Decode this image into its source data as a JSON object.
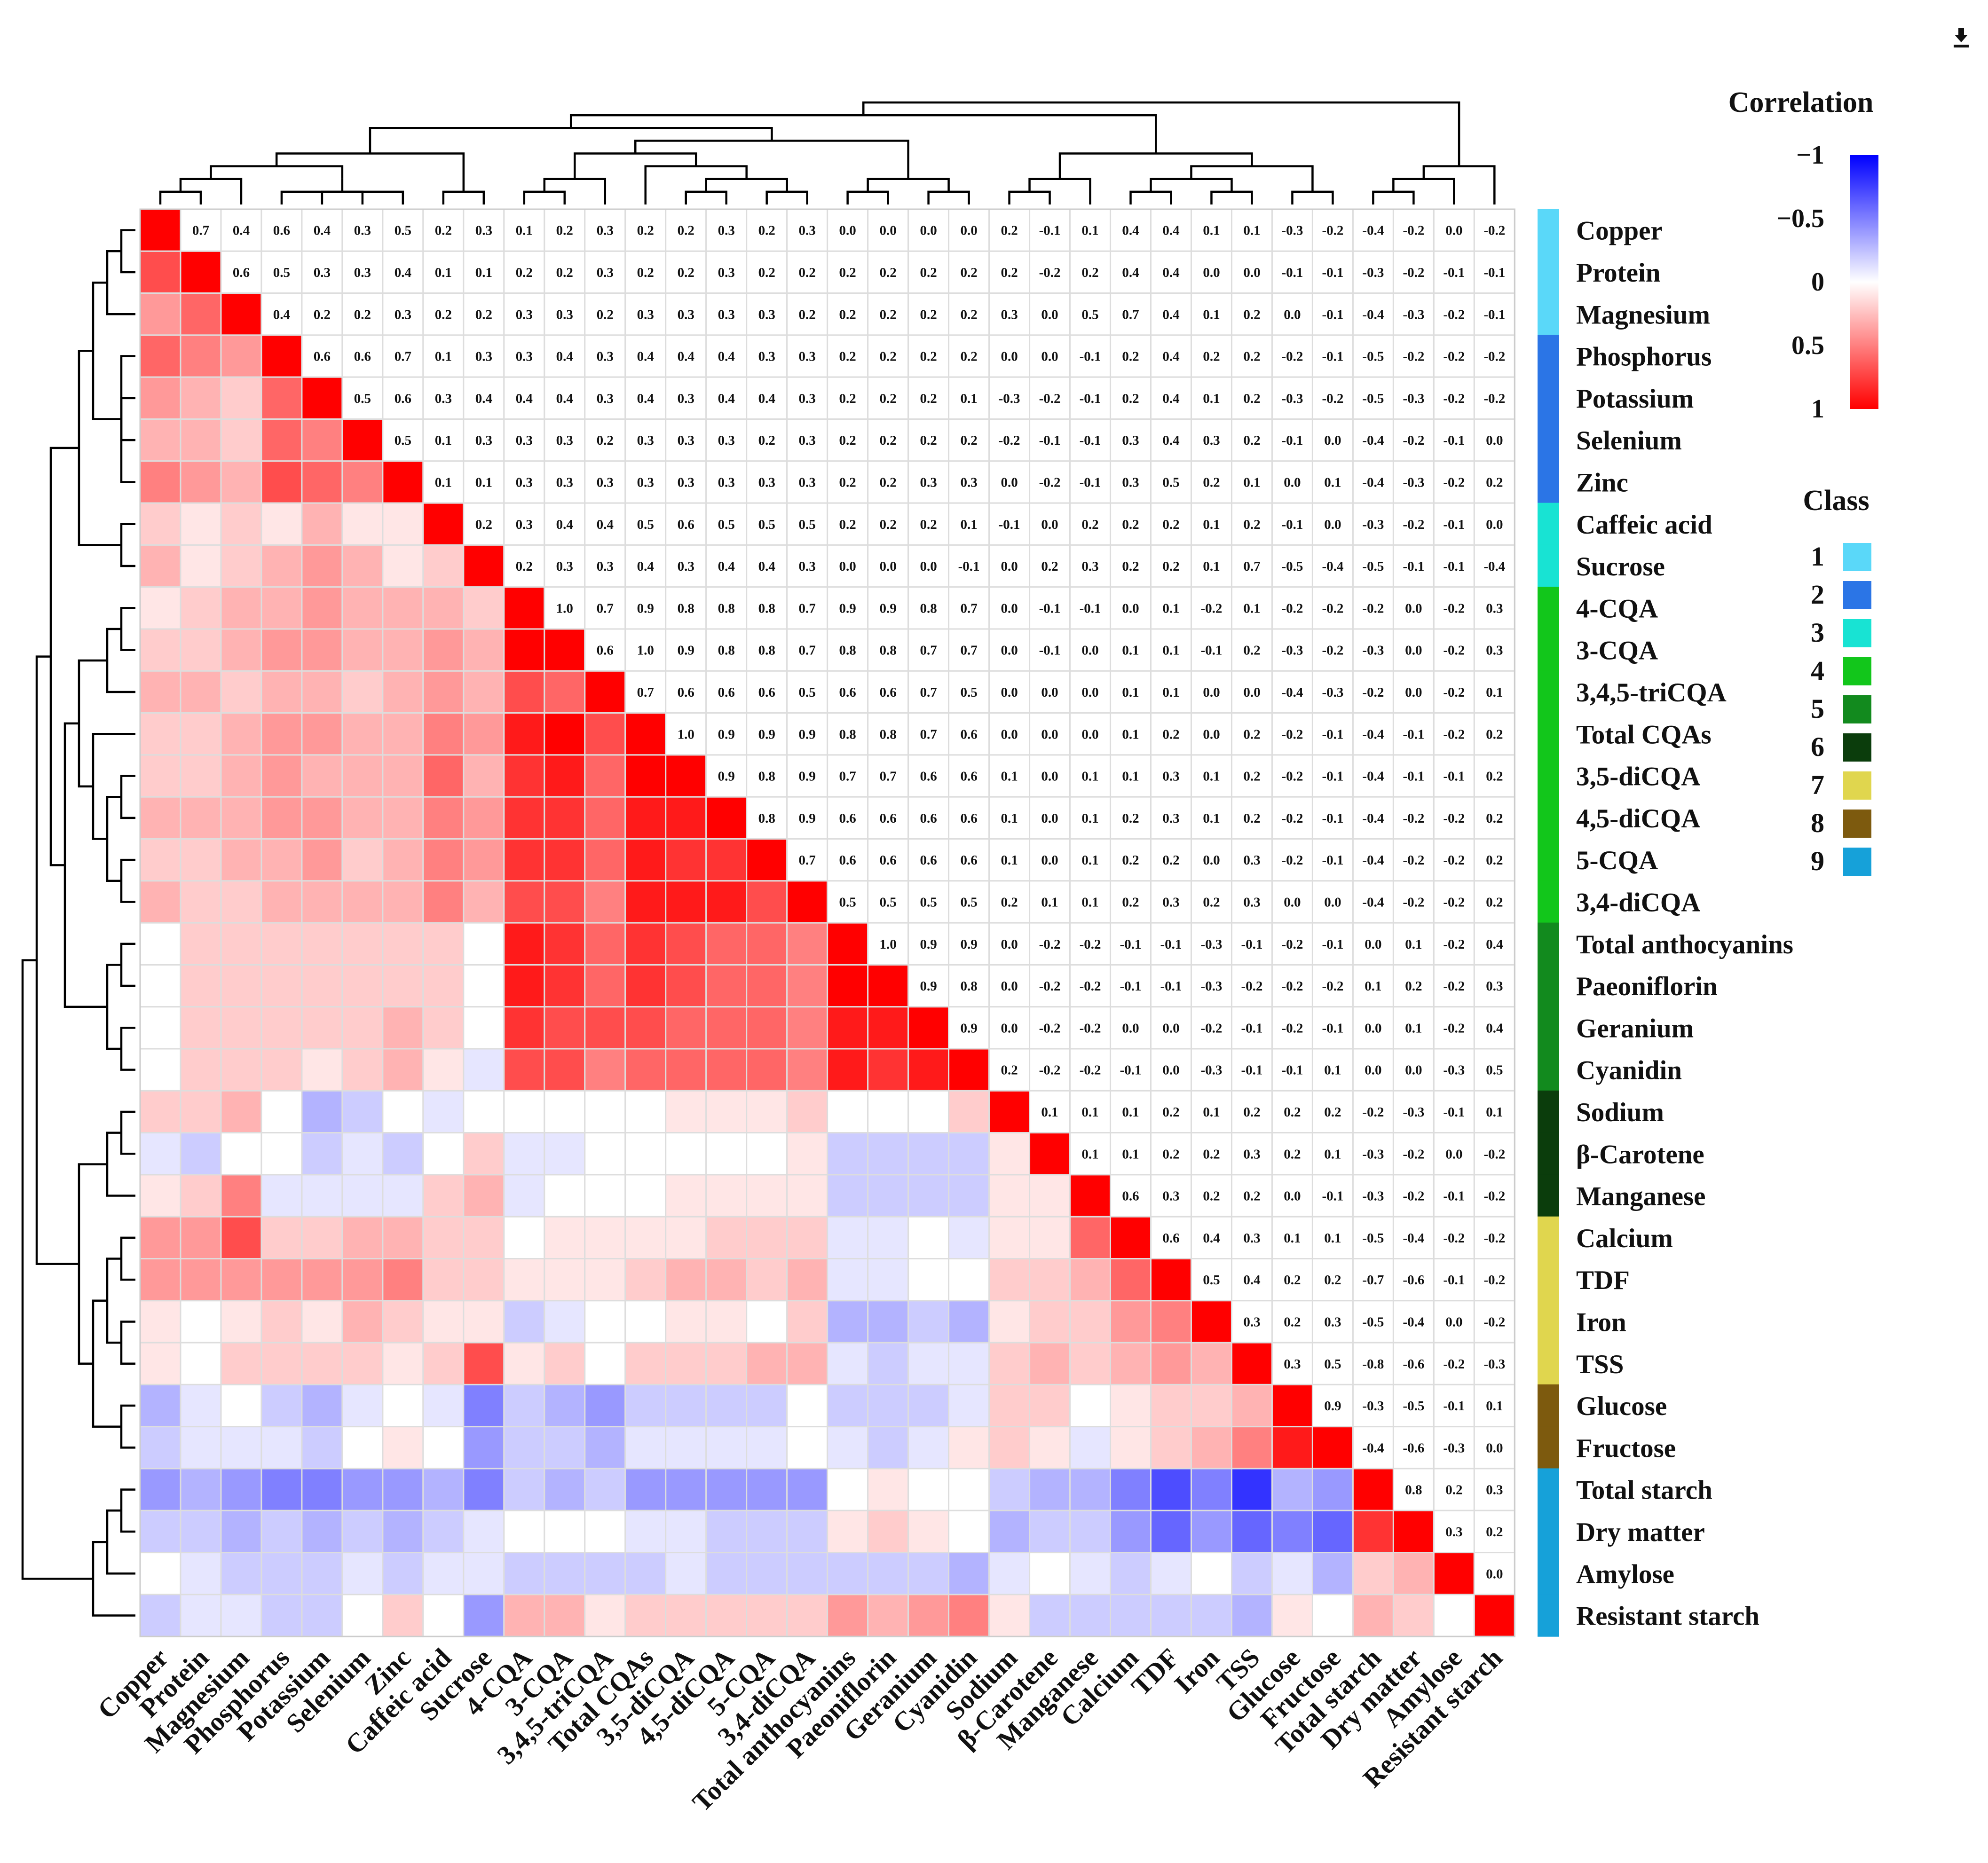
{
  "download_icon": "download-icon",
  "chart_data": {
    "type": "heatmap",
    "title": "",
    "variables": [
      "Copper",
      "Protein",
      "Magnesium",
      "Phosphorus",
      "Potassium",
      "Selenium",
      "Zinc",
      "Caffeic acid",
      "Sucrose",
      "4-CQA",
      "3-CQA",
      "3,4,5-triCQA",
      "Total CQAs",
      "3,5-diCQA",
      "4,5-diCQA",
      "5-CQA",
      "3,4-diCQA",
      "Total anthocyanins",
      "Paeoniflorin",
      "Geranium",
      "Cyanidin",
      "Sodium",
      "β-Carotene",
      "Manganese",
      "Calcium",
      "TDF",
      "Iron",
      "TSS",
      "Glucose",
      "Fructose",
      "Total starch",
      "Dry matter",
      "Amylose",
      "Resistant starch"
    ],
    "classes": [
      1,
      1,
      1,
      2,
      2,
      2,
      2,
      3,
      3,
      4,
      4,
      4,
      4,
      4,
      4,
      4,
      4,
      5,
      5,
      5,
      5,
      6,
      6,
      6,
      7,
      7,
      7,
      7,
      8,
      8,
      9,
      9,
      9,
      9
    ],
    "upper_values": [
      [
        "0.7",
        "0.4",
        "0.6",
        "0.4",
        "0.3",
        "0.5",
        "0.2",
        "0.3",
        "0.1",
        "0.2",
        "0.3",
        "0.2",
        "0.2",
        "0.3",
        "0.2",
        "0.3",
        "0.0",
        "0.0",
        "0.0",
        "0.0",
        "0.2",
        "-0.1",
        "0.1",
        "0.4",
        "0.4",
        "0.1",
        "0.1",
        "-0.3",
        "-0.2",
        "-0.4",
        "-0.2",
        "0.0",
        "-0.2"
      ],
      [
        "0.6",
        "0.5",
        "0.3",
        "0.3",
        "0.4",
        "0.1",
        "0.1",
        "0.2",
        "0.2",
        "0.3",
        "0.2",
        "0.2",
        "0.3",
        "0.2",
        "0.2",
        "0.2",
        "0.2",
        "0.2",
        "0.2",
        "0.2",
        "-0.2",
        "0.2",
        "0.4",
        "0.4",
        "0.0",
        "0.0",
        "-0.1",
        "-0.1",
        "-0.3",
        "-0.2",
        "-0.1",
        "-0.1"
      ],
      [
        "0.4",
        "0.2",
        "0.2",
        "0.3",
        "0.2",
        "0.2",
        "0.3",
        "0.3",
        "0.2",
        "0.3",
        "0.3",
        "0.3",
        "0.3",
        "0.2",
        "0.2",
        "0.2",
        "0.2",
        "0.2",
        "0.3",
        "0.0",
        "0.5",
        "0.7",
        "0.4",
        "0.1",
        "0.2",
        "0.0",
        "-0.1",
        "-0.4",
        "-0.3",
        "-0.2",
        "-0.1"
      ],
      [
        "0.6",
        "0.6",
        "0.7",
        "0.1",
        "0.3",
        "0.3",
        "0.4",
        "0.3",
        "0.4",
        "0.4",
        "0.4",
        "0.3",
        "0.3",
        "0.2",
        "0.2",
        "0.2",
        "0.2",
        "0.0",
        "0.0",
        "-0.1",
        "0.2",
        "0.4",
        "0.2",
        "0.2",
        "-0.2",
        "-0.1",
        "-0.5",
        "-0.2",
        "-0.2",
        "-0.2"
      ],
      [
        "0.5",
        "0.6",
        "0.3",
        "0.4",
        "0.4",
        "0.4",
        "0.3",
        "0.4",
        "0.3",
        "0.4",
        "0.4",
        "0.3",
        "0.2",
        "0.2",
        "0.2",
        "0.1",
        "-0.3",
        "-0.2",
        "-0.1",
        "0.2",
        "0.4",
        "0.1",
        "0.2",
        "-0.3",
        "-0.2",
        "-0.5",
        "-0.3",
        "-0.2",
        "-0.2"
      ],
      [
        "0.5",
        "0.1",
        "0.3",
        "0.3",
        "0.3",
        "0.2",
        "0.3",
        "0.3",
        "0.3",
        "0.2",
        "0.3",
        "0.2",
        "0.2",
        "0.2",
        "0.2",
        "-0.2",
        "-0.1",
        "-0.1",
        "0.3",
        "0.4",
        "0.3",
        "0.2",
        "-0.1",
        "0.0",
        "-0.4",
        "-0.2",
        "-0.1",
        "0.0"
      ],
      [
        "0.1",
        "0.1",
        "0.3",
        "0.3",
        "0.3",
        "0.3",
        "0.3",
        "0.3",
        "0.3",
        "0.3",
        "0.2",
        "0.2",
        "0.3",
        "0.3",
        "0.0",
        "-0.2",
        "-0.1",
        "0.3",
        "0.5",
        "0.2",
        "0.1",
        "0.0",
        "0.1",
        "-0.4",
        "-0.3",
        "-0.2",
        "0.2"
      ],
      [
        "0.2",
        "0.3",
        "0.4",
        "0.4",
        "0.5",
        "0.6",
        "0.5",
        "0.5",
        "0.5",
        "0.2",
        "0.2",
        "0.2",
        "0.1",
        "-0.1",
        "0.0",
        "0.2",
        "0.2",
        "0.2",
        "0.1",
        "0.2",
        "-0.1",
        "0.0",
        "-0.3",
        "-0.2",
        "-0.1",
        "0.0"
      ],
      [
        "0.2",
        "0.3",
        "0.3",
        "0.4",
        "0.3",
        "0.4",
        "0.4",
        "0.3",
        "0.0",
        "0.0",
        "0.0",
        "-0.1",
        "0.0",
        "0.2",
        "0.3",
        "0.2",
        "0.2",
        "0.1",
        "0.7",
        "-0.5",
        "-0.4",
        "-0.5",
        "-0.1",
        "-0.1",
        "-0.4"
      ],
      [
        "1.0",
        "0.7",
        "0.9",
        "0.8",
        "0.8",
        "0.8",
        "0.7",
        "0.9",
        "0.9",
        "0.8",
        "0.7",
        "0.0",
        "-0.1",
        "-0.1",
        "0.0",
        "0.1",
        "-0.2",
        "0.1",
        "-0.2",
        "-0.2",
        "-0.2",
        "0.0",
        "-0.2",
        "0.3"
      ],
      [
        "0.6",
        "1.0",
        "0.9",
        "0.8",
        "0.8",
        "0.7",
        "0.8",
        "0.8",
        "0.7",
        "0.7",
        "0.0",
        "-0.1",
        "0.0",
        "0.1",
        "0.1",
        "-0.1",
        "0.2",
        "-0.3",
        "-0.2",
        "-0.3",
        "0.0",
        "-0.2",
        "0.3"
      ],
      [
        "0.7",
        "0.6",
        "0.6",
        "0.6",
        "0.5",
        "0.6",
        "0.6",
        "0.7",
        "0.5",
        "0.0",
        "0.0",
        "0.0",
        "0.1",
        "0.1",
        "0.0",
        "0.0",
        "-0.4",
        "-0.3",
        "-0.2",
        "0.0",
        "-0.2",
        "0.1"
      ],
      [
        "1.0",
        "0.9",
        "0.9",
        "0.9",
        "0.8",
        "0.8",
        "0.7",
        "0.6",
        "0.0",
        "0.0",
        "0.0",
        "0.1",
        "0.2",
        "0.0",
        "0.2",
        "-0.2",
        "-0.1",
        "-0.4",
        "-0.1",
        "-0.2",
        "0.2"
      ],
      [
        "0.9",
        "0.8",
        "0.9",
        "0.7",
        "0.7",
        "0.6",
        "0.6",
        "0.1",
        "0.0",
        "0.1",
        "0.1",
        "0.3",
        "0.1",
        "0.2",
        "-0.2",
        "-0.1",
        "-0.4",
        "-0.1",
        "-0.1",
        "0.2"
      ],
      [
        "0.8",
        "0.9",
        "0.6",
        "0.6",
        "0.6",
        "0.6",
        "0.1",
        "0.0",
        "0.1",
        "0.2",
        "0.3",
        "0.1",
        "0.2",
        "-0.2",
        "-0.1",
        "-0.4",
        "-0.2",
        "-0.2",
        "0.2"
      ],
      [
        "0.7",
        "0.6",
        "0.6",
        "0.6",
        "0.6",
        "0.1",
        "0.0",
        "0.1",
        "0.2",
        "0.2",
        "0.0",
        "0.3",
        "-0.2",
        "-0.1",
        "-0.4",
        "-0.2",
        "-0.2",
        "0.2"
      ],
      [
        "0.5",
        "0.5",
        "0.5",
        "0.5",
        "0.2",
        "0.1",
        "0.1",
        "0.2",
        "0.3",
        "0.2",
        "0.3",
        "0.0",
        "0.0",
        "-0.4",
        "-0.2",
        "-0.2",
        "0.2"
      ],
      [
        "1.0",
        "0.9",
        "0.9",
        "0.0",
        "-0.2",
        "-0.2",
        "-0.1",
        "-0.1",
        "-0.3",
        "-0.1",
        "-0.2",
        "-0.1",
        "0.0",
        "0.1",
        "-0.2",
        "0.4"
      ],
      [
        "0.9",
        "0.8",
        "0.0",
        "-0.2",
        "-0.2",
        "-0.1",
        "-0.1",
        "-0.3",
        "-0.2",
        "-0.2",
        "-0.2",
        "0.1",
        "0.2",
        "-0.2",
        "0.3"
      ],
      [
        "0.9",
        "0.0",
        "-0.2",
        "-0.2",
        "0.0",
        "0.0",
        "-0.2",
        "-0.1",
        "-0.2",
        "-0.1",
        "0.0",
        "0.1",
        "-0.2",
        "0.4"
      ],
      [
        "0.2",
        "-0.2",
        "-0.2",
        "-0.1",
        "0.0",
        "-0.3",
        "-0.1",
        "-0.1",
        "0.1",
        "0.0",
        "0.0",
        "-0.3",
        "0.5"
      ],
      [
        "0.1",
        "0.1",
        "0.1",
        "0.2",
        "0.1",
        "0.2",
        "0.2",
        "0.2",
        "-0.2",
        "-0.3",
        "-0.1",
        "0.1"
      ],
      [
        "0.1",
        "0.1",
        "0.2",
        "0.2",
        "0.3",
        "0.2",
        "0.1",
        "-0.3",
        "-0.2",
        "0.0",
        "-0.2"
      ],
      [
        "0.6",
        "0.3",
        "0.2",
        "0.2",
        "0.0",
        "-0.1",
        "-0.3",
        "-0.2",
        "-0.1",
        "-0.2"
      ],
      [
        "0.6",
        "0.4",
        "0.3",
        "0.1",
        "0.1",
        "-0.5",
        "-0.4",
        "-0.2",
        "-0.2"
      ],
      [
        "0.5",
        "0.4",
        "0.2",
        "0.2",
        "-0.7",
        "-0.6",
        "-0.1",
        "-0.2"
      ],
      [
        "0.3",
        "0.2",
        "0.3",
        "-0.5",
        "-0.4",
        "0.0",
        "-0.2"
      ],
      [
        "0.3",
        "0.5",
        "-0.8",
        "-0.6",
        "-0.2",
        "-0.3"
      ],
      [
        "0.9",
        "-0.3",
        "-0.5",
        "-0.1",
        "0.1"
      ],
      [
        "-0.4",
        "-0.6",
        "-0.3",
        "0.0"
      ],
      [
        "0.8",
        "0.2",
        "0.3"
      ],
      [
        "0.3",
        "0.2"
      ],
      [
        "0.0"
      ],
      []
    ],
    "colorbar": {
      "title": "Correlation",
      "ticks": [
        "−1",
        "−0.5",
        "0",
        "0.5",
        "1"
      ],
      "colors": [
        "#0000ff",
        "#ffffff",
        "#ff0000"
      ]
    },
    "class_legend": {
      "title": "Class",
      "items": [
        {
          "label": "1",
          "color": "#5ad8f9"
        },
        {
          "label": "2",
          "color": "#2b75e6"
        },
        {
          "label": "3",
          "color": "#18e3d3"
        },
        {
          "label": "4",
          "color": "#12c61b"
        },
        {
          "label": "5",
          "color": "#128a1e"
        },
        {
          "label": "6",
          "color": "#0b3d0c"
        },
        {
          "label": "7",
          "color": "#e0d64e"
        },
        {
          "label": "8",
          "color": "#7d5a0e"
        },
        {
          "label": "9",
          "color": "#16a1d9"
        }
      ]
    },
    "dendrogram": [
      [
        0,
        1
      ],
      [
        34,
        2
      ],
      [
        3,
        6
      ],
      [
        4,
        5
      ],
      [
        36,
        37
      ],
      [
        35,
        38
      ],
      [
        7,
        8
      ],
      [
        39,
        40
      ],
      [
        9,
        10
      ],
      [
        42,
        11
      ],
      [
        13,
        14
      ],
      [
        15,
        16
      ],
      [
        44,
        45
      ],
      [
        12,
        46
      ],
      [
        43,
        47
      ],
      [
        17,
        18
      ],
      [
        19,
        20
      ],
      [
        49,
        50
      ],
      [
        48,
        51
      ],
      [
        41,
        52
      ],
      [
        21,
        22
      ],
      [
        54,
        23
      ],
      [
        24,
        25
      ],
      [
        26,
        27
      ],
      [
        56,
        57
      ],
      [
        28,
        29
      ],
      [
        58,
        59
      ],
      [
        55,
        60
      ],
      [
        53,
        61
      ],
      [
        30,
        31
      ],
      [
        63,
        32
      ],
      [
        64,
        33
      ],
      [
        62,
        65
      ]
    ]
  }
}
